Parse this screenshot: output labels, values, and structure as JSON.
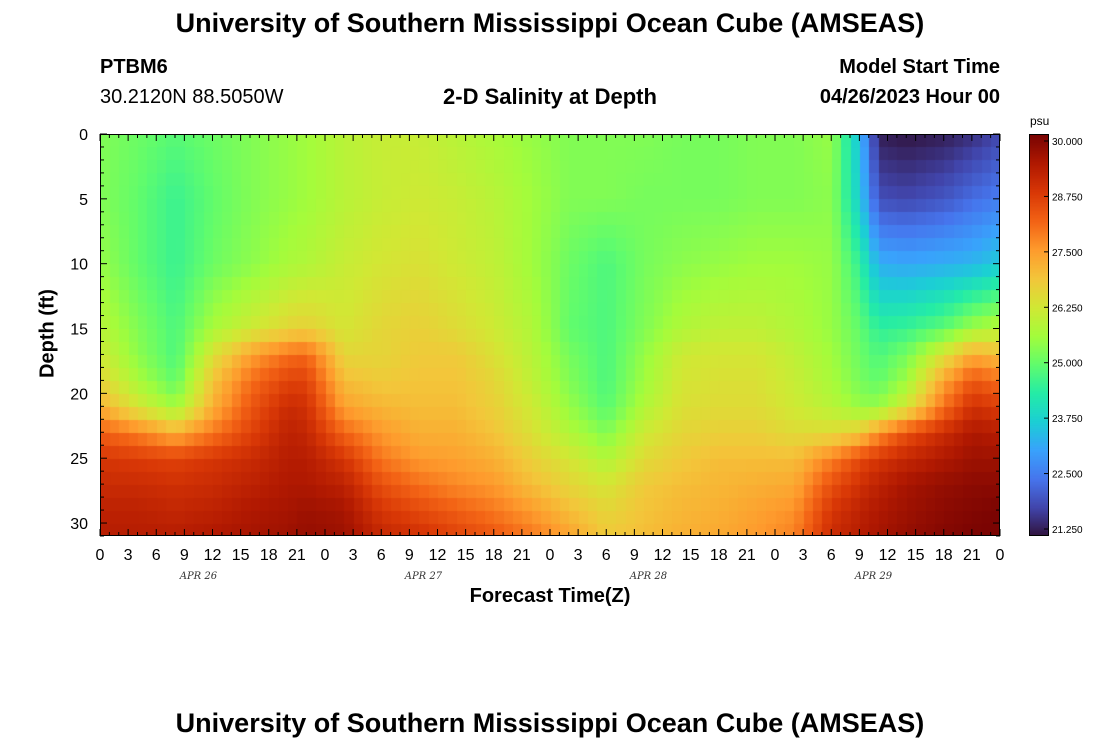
{
  "header": {
    "title": "University of Southern Mississippi Ocean Cube (AMSEAS)",
    "station_id": "PTBM6",
    "coordinates": "30.2120N  88.5050W",
    "subtitle": "2-D Salinity at Depth",
    "model_start_label": "Model Start Time",
    "model_start_value": "04/26/2023 Hour 00"
  },
  "footer": {
    "title": "University of Southern Mississippi Ocean Cube (AMSEAS)"
  },
  "colors": {
    "colormap": [
      "#30123b",
      "#4145ab",
      "#4675ed",
      "#39a2fc",
      "#1bcfd4",
      "#24eca6",
      "#61fc6c",
      "#a4fc3b",
      "#d1e834",
      "#f3c63a",
      "#fe9b2d",
      "#f36315",
      "#d93806",
      "#b11901",
      "#7a0402"
    ]
  },
  "chart_data": {
    "type": "heatmap",
    "xlabel": "Forecast Time(Z)",
    "ylabel": "Depth (ft)",
    "colorbar_unit": "psu",
    "xlim": [
      0,
      96
    ],
    "ylim": [
      31,
      0
    ],
    "x_tick_labels": [
      "0",
      "3",
      "6",
      "9",
      "12",
      "15",
      "18",
      "21",
      "0",
      "3",
      "6",
      "9",
      "12",
      "15",
      "18",
      "21",
      "0",
      "3",
      "6",
      "9",
      "12",
      "15",
      "18",
      "21",
      "0",
      "3",
      "6",
      "9",
      "12",
      "15",
      "18",
      "21",
      "0"
    ],
    "day_labels": [
      "APR 26",
      "APR 27",
      "APR 28",
      "APR 29"
    ],
    "y_ticks": [
      0,
      5,
      10,
      15,
      20,
      25,
      30
    ],
    "y_tick_labels": [
      "0",
      "5",
      "10",
      "15",
      "20",
      "25",
      "30"
    ],
    "colorbar_min": 21.25,
    "colorbar_max": 30.0,
    "colorbar_ticks": [
      "30.000",
      "28.750",
      "27.500",
      "26.250",
      "25.000",
      "23.750",
      "22.500",
      "21.250"
    ],
    "depths": [
      0,
      5,
      10,
      15,
      17,
      19,
      21,
      23,
      25,
      27,
      29,
      31
    ],
    "times": [
      0,
      4,
      8,
      12,
      16,
      20,
      22,
      26,
      30,
      34,
      38,
      42,
      46,
      50,
      54,
      58,
      62,
      66,
      70,
      74,
      78,
      81,
      83,
      86,
      90,
      93,
      96
    ],
    "salinity": [
      [
        25.3,
        25.1,
        24.9,
        25.1,
        25.3,
        25.5,
        25.6,
        25.9,
        26.1,
        26.1,
        25.9,
        25.7,
        25.5,
        25.3,
        25.3,
        25.3,
        25.2,
        25.2,
        25.3,
        25.3,
        25.5,
        23.5,
        21.4,
        21.3,
        21.4,
        21.6,
        21.9
      ],
      [
        25.3,
        25.0,
        24.6,
        25.0,
        25.3,
        25.5,
        25.6,
        25.9,
        26.1,
        26.2,
        26.1,
        25.9,
        25.6,
        25.3,
        25.3,
        25.2,
        25.2,
        25.2,
        25.3,
        25.3,
        25.4,
        23.7,
        22.0,
        21.9,
        22.1,
        22.4,
        22.6
      ],
      [
        25.5,
        25.0,
        24.6,
        25.1,
        25.4,
        25.7,
        25.8,
        26.1,
        26.3,
        26.4,
        26.2,
        26.0,
        25.6,
        25.1,
        24.8,
        25.2,
        25.4,
        25.5,
        25.6,
        25.6,
        25.5,
        24.5,
        23.3,
        23.2,
        23.3,
        23.4,
        23.7
      ],
      [
        25.9,
        25.3,
        24.8,
        25.7,
        26.2,
        26.6,
        26.7,
        26.3,
        26.6,
        26.7,
        26.5,
        26.2,
        25.8,
        25.0,
        24.8,
        25.3,
        25.8,
        26.0,
        26.0,
        25.8,
        25.5,
        25.0,
        24.5,
        24.6,
        25.0,
        25.6,
        25.9
      ],
      [
        26.2,
        25.4,
        24.8,
        26.4,
        27.4,
        28.0,
        28.1,
        26.6,
        26.6,
        26.8,
        26.8,
        26.4,
        25.9,
        25.2,
        24.8,
        25.5,
        26.2,
        26.3,
        26.3,
        26.0,
        25.6,
        25.1,
        24.8,
        25.2,
        26.4,
        27.3,
        27.0
      ],
      [
        26.6,
        25.7,
        25.0,
        26.9,
        28.0,
        28.6,
        28.6,
        27.0,
        26.8,
        26.9,
        26.9,
        26.6,
        26.0,
        25.3,
        24.8,
        25.6,
        26.3,
        26.4,
        26.4,
        26.1,
        25.7,
        25.2,
        25.0,
        25.6,
        27.4,
        28.3,
        28.0
      ],
      [
        27.2,
        26.3,
        25.6,
        27.2,
        28.3,
        29.0,
        28.9,
        27.4,
        27.1,
        27.0,
        27.0,
        26.7,
        26.2,
        25.5,
        24.9,
        25.8,
        26.4,
        26.5,
        26.5,
        26.2,
        25.9,
        25.5,
        25.5,
        26.3,
        28.0,
        28.9,
        28.7
      ],
      [
        28.2,
        27.8,
        27.2,
        27.9,
        28.6,
        29.2,
        29.1,
        28.1,
        27.5,
        27.2,
        27.2,
        26.9,
        26.4,
        25.8,
        25.3,
        26.2,
        26.6,
        26.7,
        26.7,
        26.5,
        26.5,
        26.8,
        27.6,
        28.4,
        29.0,
        29.4,
        29.3
      ],
      [
        28.8,
        28.7,
        28.6,
        28.8,
        29.0,
        29.3,
        29.3,
        28.8,
        27.9,
        27.5,
        27.4,
        27.2,
        26.7,
        26.3,
        25.8,
        26.5,
        26.8,
        27.0,
        27.0,
        27.0,
        27.8,
        28.5,
        28.8,
        29.1,
        29.4,
        29.6,
        29.6
      ],
      [
        29.0,
        29.0,
        28.9,
        29.0,
        29.2,
        29.4,
        29.4,
        29.2,
        28.4,
        28.0,
        27.7,
        27.5,
        27.0,
        26.6,
        26.3,
        26.8,
        27.0,
        27.1,
        27.2,
        27.3,
        28.4,
        28.9,
        29.2,
        29.5,
        29.7,
        29.8,
        29.8
      ],
      [
        29.2,
        29.2,
        29.1,
        29.2,
        29.4,
        29.5,
        29.6,
        29.5,
        28.8,
        28.5,
        28.2,
        27.9,
        27.5,
        27.0,
        26.6,
        26.9,
        27.1,
        27.2,
        27.4,
        27.6,
        28.8,
        29.2,
        29.4,
        29.6,
        29.8,
        29.9,
        30.0
      ],
      [
        29.3,
        29.3,
        29.3,
        29.4,
        29.5,
        29.6,
        29.7,
        29.6,
        29.1,
        28.9,
        28.6,
        28.3,
        27.9,
        27.4,
        26.8,
        27.0,
        27.2,
        27.3,
        27.5,
        27.8,
        29.0,
        29.3,
        29.5,
        29.7,
        29.9,
        30.0,
        30.0
      ]
    ]
  }
}
